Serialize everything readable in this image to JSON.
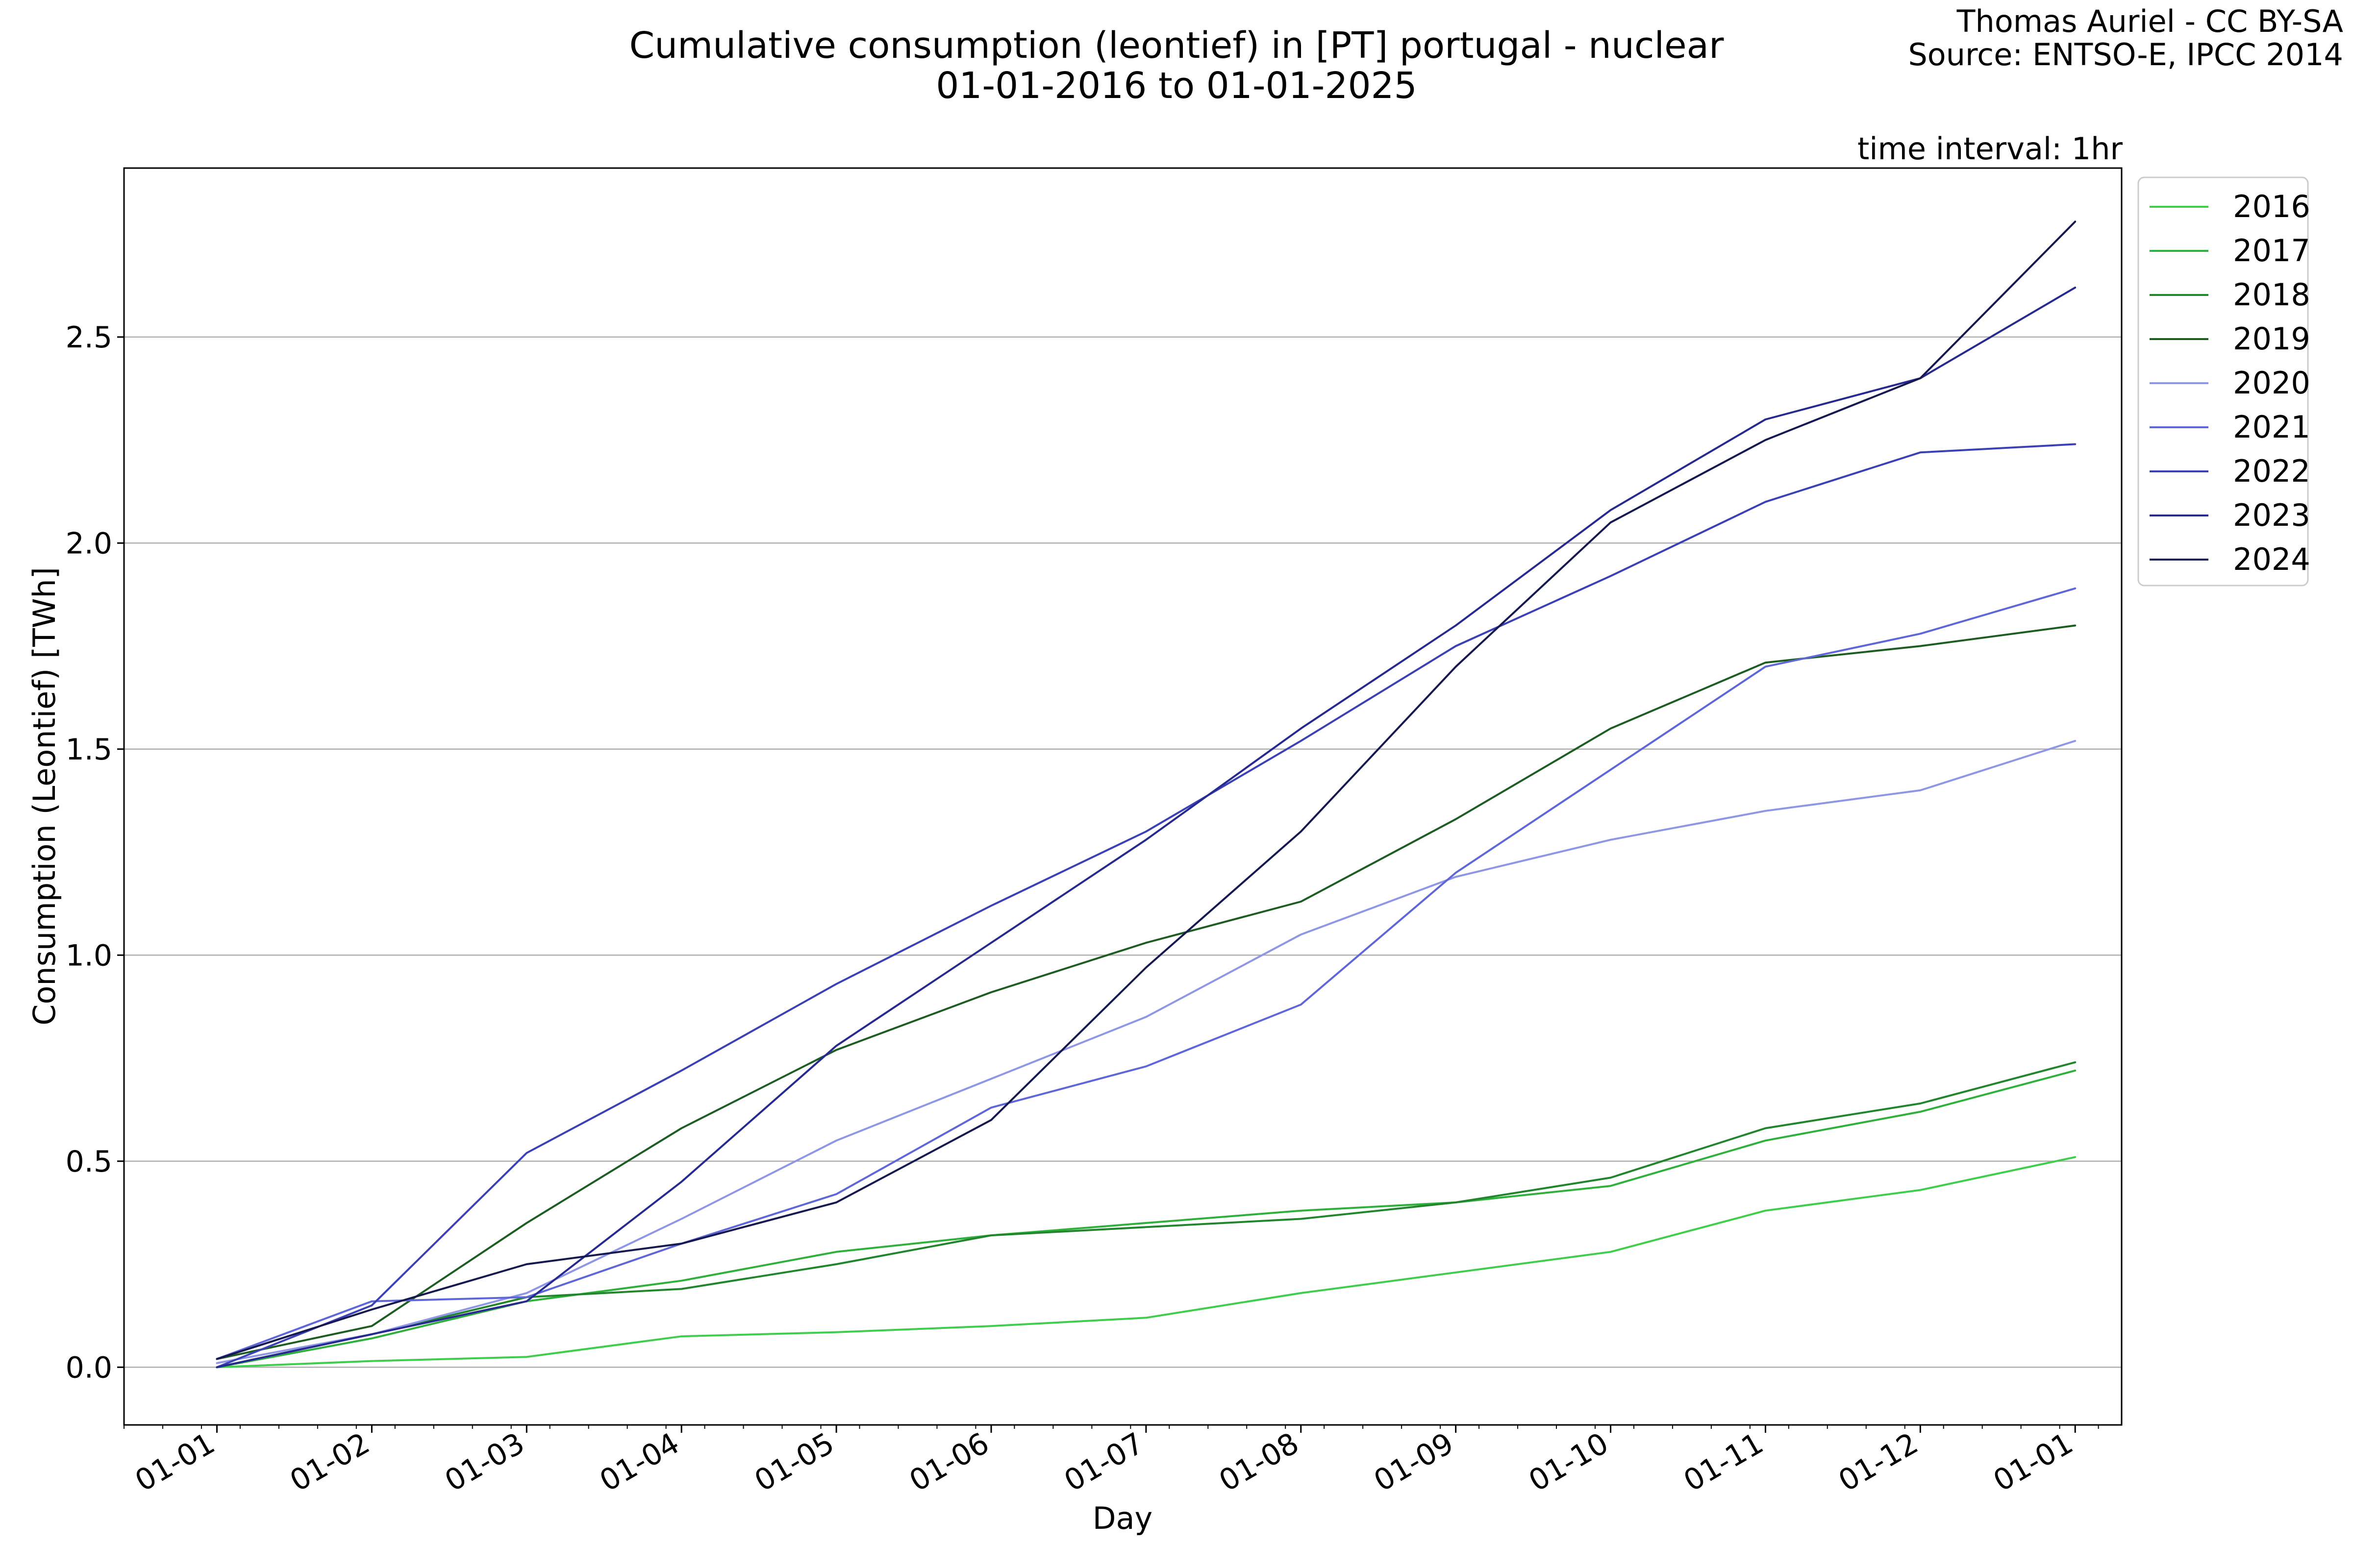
{
  "chart_data": {
    "type": "line",
    "title": "Cumulative consumption (leontief) in [PT] portugal - nuclear",
    "subtitle": "01-01-2016 to 01-01-2025",
    "credit_lines": [
      "Thomas Auriel - CC BY-SA",
      "Source: ENTSO-E, IPCC 2014"
    ],
    "annotation": "time interval: 1hr",
    "xlabel": "Day",
    "ylabel": "Consumption (Leontief) [TWh]",
    "x_tick_labels": [
      "01-01",
      "01-02",
      "01-03",
      "01-04",
      "01-05",
      "01-06",
      "01-07",
      "01-08",
      "01-09",
      "01-10",
      "01-11",
      "01-12",
      "01-01"
    ],
    "y_ticks": [
      0.0,
      0.5,
      1.0,
      1.5,
      2.0,
      2.5
    ],
    "y_tick_labels": [
      "0.0",
      "0.5",
      "1.0",
      "1.5",
      "2.0",
      "2.5"
    ],
    "ylim": [
      -0.14,
      2.91
    ],
    "xlim_months": [
      -0.6,
      12.3
    ],
    "grid": "horizontal",
    "legend_position": "outside-right-top",
    "x": [
      0,
      1,
      2,
      3,
      4,
      5,
      6,
      7,
      8,
      9,
      10,
      11,
      12
    ],
    "series": [
      {
        "name": "2016",
        "color": "#3fce4b",
        "values": [
          0.0,
          0.015,
          0.025,
          0.075,
          0.085,
          0.1,
          0.12,
          0.18,
          0.23,
          0.28,
          0.38,
          0.43,
          0.51
        ]
      },
      {
        "name": "2017",
        "color": "#2fb03c",
        "values": [
          0.0,
          0.07,
          0.16,
          0.21,
          0.28,
          0.32,
          0.35,
          0.38,
          0.4,
          0.44,
          0.55,
          0.62,
          0.72
        ]
      },
      {
        "name": "2018",
        "color": "#21852c",
        "values": [
          0.0,
          0.08,
          0.17,
          0.19,
          0.25,
          0.32,
          0.34,
          0.36,
          0.4,
          0.46,
          0.58,
          0.64,
          0.74
        ]
      },
      {
        "name": "2019",
        "color": "#1d5d22",
        "values": [
          0.02,
          0.1,
          0.35,
          0.58,
          0.77,
          0.91,
          1.03,
          1.13,
          1.33,
          1.55,
          1.71,
          1.75,
          1.8
        ]
      },
      {
        "name": "2020",
        "color": "#8f96e6",
        "values": [
          0.01,
          0.08,
          0.18,
          0.36,
          0.55,
          0.7,
          0.85,
          1.05,
          1.19,
          1.28,
          1.35,
          1.4,
          1.52
        ]
      },
      {
        "name": "2021",
        "color": "#5e66d8",
        "values": [
          0.02,
          0.16,
          0.17,
          0.3,
          0.42,
          0.63,
          0.73,
          0.88,
          1.2,
          1.45,
          1.7,
          1.78,
          1.89
        ]
      },
      {
        "name": "2022",
        "color": "#3b41b5",
        "values": [
          0.0,
          0.15,
          0.52,
          0.72,
          0.93,
          1.12,
          1.3,
          1.52,
          1.75,
          1.92,
          2.1,
          2.22,
          2.24
        ]
      },
      {
        "name": "2023",
        "color": "#26298f",
        "values": [
          0.0,
          0.08,
          0.16,
          0.45,
          0.78,
          1.03,
          1.28,
          1.55,
          1.8,
          2.08,
          2.3,
          2.4,
          2.62
        ]
      },
      {
        "name": "2024",
        "color": "#161850",
        "values": [
          0.02,
          0.14,
          0.25,
          0.3,
          0.4,
          0.6,
          0.97,
          1.3,
          1.7,
          2.05,
          2.25,
          2.4,
          2.78
        ]
      }
    ]
  }
}
